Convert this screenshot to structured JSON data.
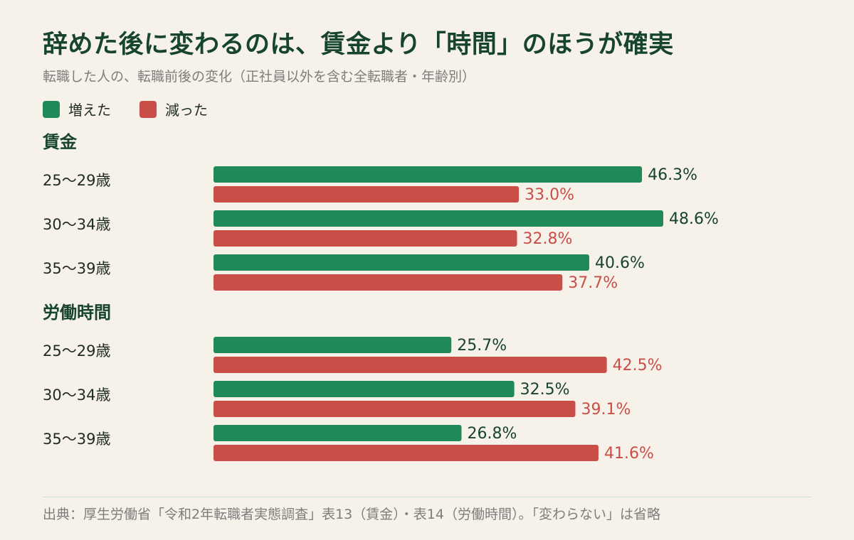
{
  "title": "辞めた後に変わるのは、賃金より「時間」のほうが確実",
  "subtitle": "転職した人の、転職前後の変化（正社員以外を含む全転職者・年齢別）",
  "legend": {
    "increase_label": "増えた",
    "decrease_label": "減った"
  },
  "colors": {
    "increase": "#1f8a57",
    "decrease": "#c84e47",
    "increase_text": "#16442e",
    "decrease_text": "#c84e47",
    "heading": "#16442e"
  },
  "source": "出典：厚生労働省「令和2年転職者実態調査」表13（賃金）・表14（労働時間）。「変わらない」は省略",
  "chart_data": {
    "type": "bar",
    "orientation": "horizontal",
    "unit": "%",
    "xlim": [
      0,
      50
    ],
    "series_names": [
      "増えた",
      "減った"
    ],
    "groups": [
      {
        "heading": "賃金",
        "rows": [
          {
            "category": "25〜29歳",
            "increase": 46.3,
            "decrease": 33.0
          },
          {
            "category": "30〜34歳",
            "increase": 48.6,
            "decrease": 32.8
          },
          {
            "category": "35〜39歳",
            "increase": 40.6,
            "decrease": 37.7
          }
        ]
      },
      {
        "heading": "労働時間",
        "rows": [
          {
            "category": "25〜29歳",
            "increase": 25.7,
            "decrease": 42.5
          },
          {
            "category": "30〜34歳",
            "increase": 32.5,
            "decrease": 39.1
          },
          {
            "category": "35〜39歳",
            "increase": 26.8,
            "decrease": 41.6
          }
        ]
      }
    ]
  }
}
